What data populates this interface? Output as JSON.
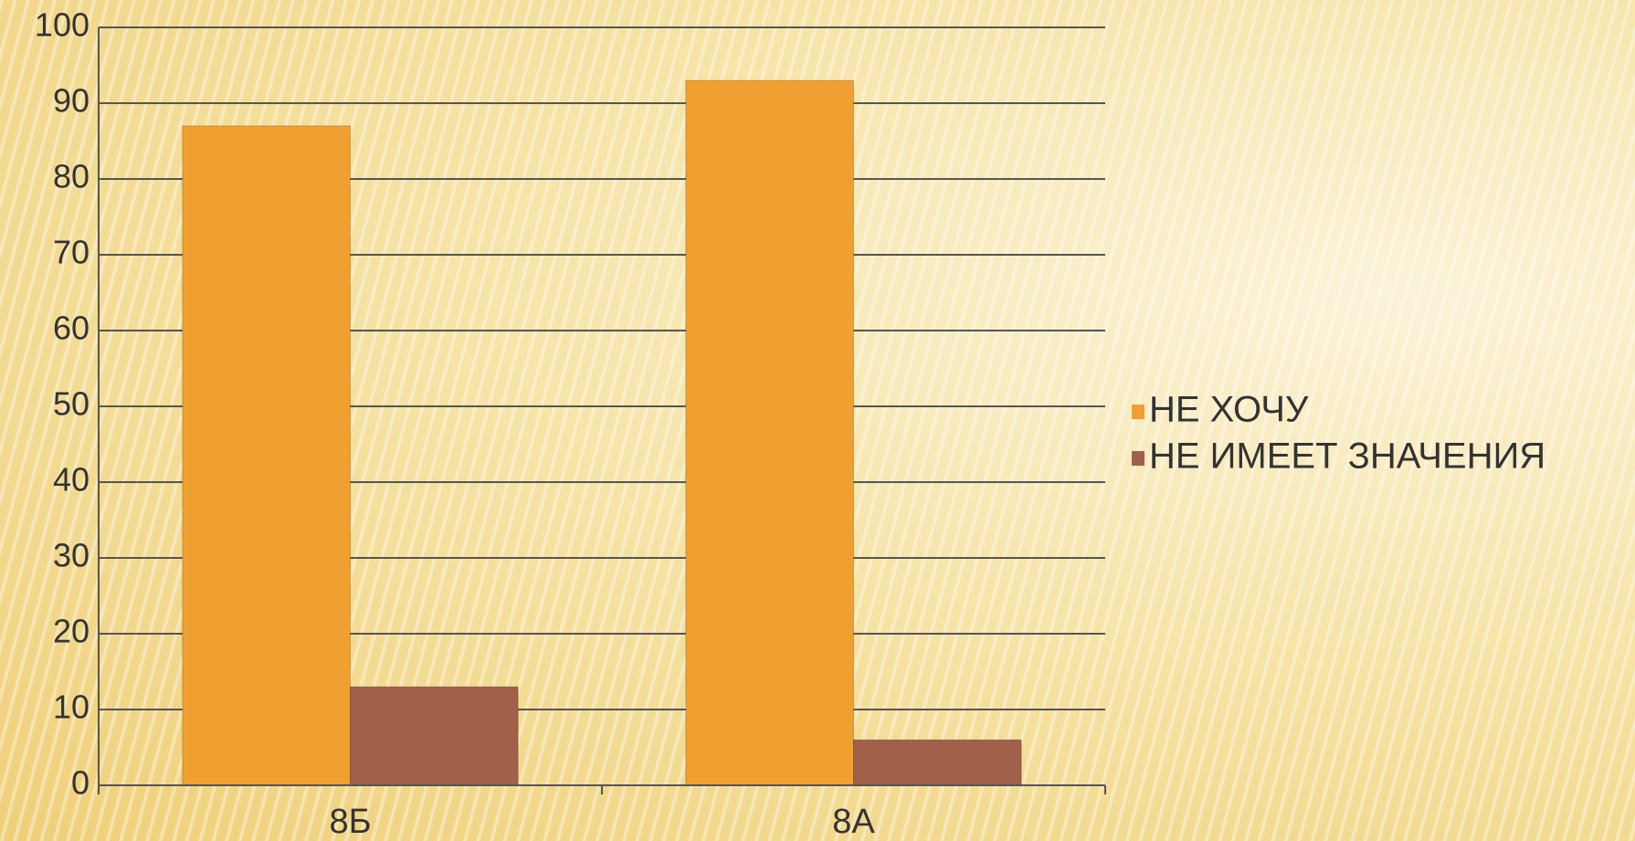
{
  "chart_data": {
    "type": "bar",
    "categories": [
      "8Б",
      "8А"
    ],
    "series": [
      {
        "name": "НЕ ХОЧУ",
        "color": "#f0a030",
        "values": [
          87,
          93
        ]
      },
      {
        "name": "НЕ ИМЕЕТ ЗНАЧЕНИЯ",
        "color": "#a0604a",
        "values": [
          13,
          6
        ]
      }
    ],
    "ylim": [
      0,
      100
    ],
    "yticks": [
      0,
      10,
      20,
      30,
      40,
      50,
      60,
      70,
      80,
      90,
      100
    ],
    "grid": true,
    "legend": "right"
  }
}
